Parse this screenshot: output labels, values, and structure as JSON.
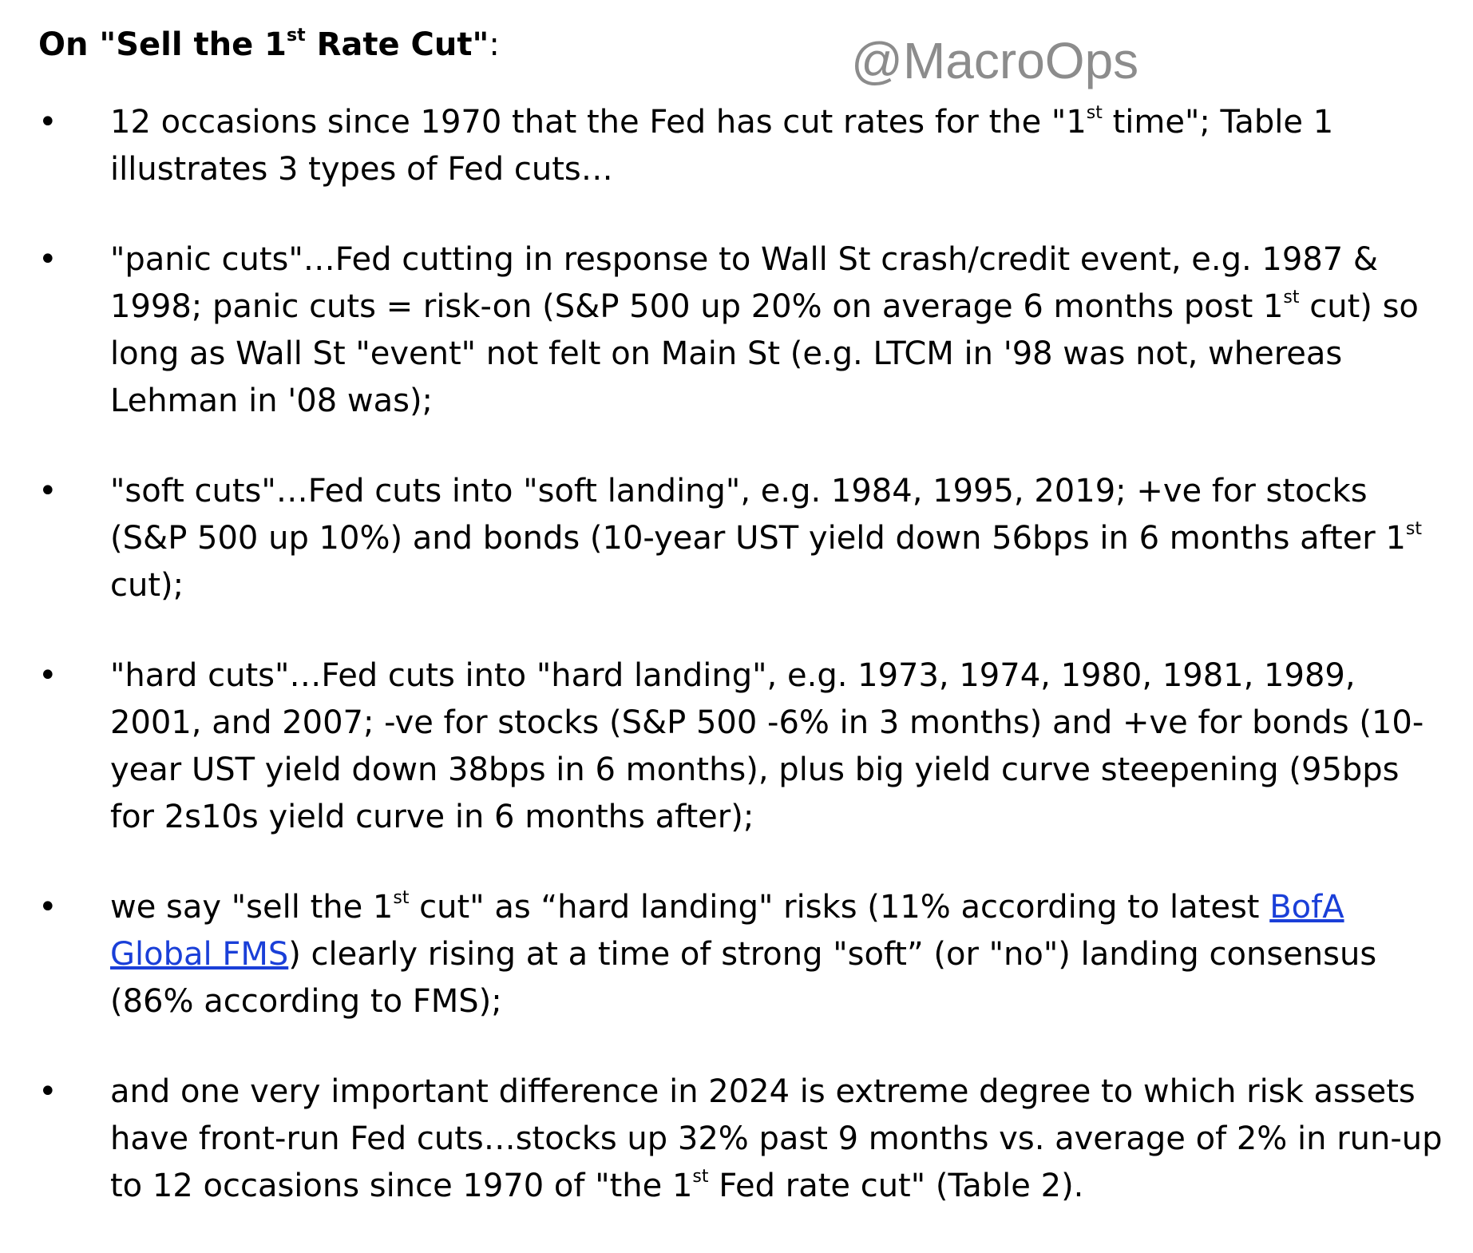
{
  "heading": {
    "prefix": "On \"Sell the 1",
    "sup": "st",
    "suffix": " Rate Cut\"",
    "colon": ":"
  },
  "watermark": "@MacroOps",
  "bullet_char": "•",
  "bullets": [
    {
      "t1": "12 occasions since 1970 that the Fed has cut rates for the \"1",
      "s1": "st",
      "t2": " time\"; Table 1 illustrates 3 types of Fed cuts…"
    },
    {
      "t1": "\"panic cuts\"…Fed cutting in response to Wall St crash/credit event, e.g. 1987 & 1998; panic cuts = risk-on (S&P 500 up 20% on average 6 months post 1",
      "s1": "st",
      "t2": " cut) so long as Wall St \"event\" not felt on Main St (e.g. LTCM in '98 was not, whereas Lehman in '08 was);"
    },
    {
      "t1": "\"soft cuts\"…Fed cuts into \"soft landing\", e.g. 1984, 1995, 2019; +ve for stocks (S&P 500 up 10%) and bonds (10-year UST yield down 56bps in 6 months after 1",
      "s1": "st",
      "t2": " cut);"
    },
    {
      "t1": "\"hard cuts\"…Fed cuts into \"hard landing\", e.g. 1973, 1974, 1980, 1981, 1989, 2001, and 2007; -ve for stocks (S&P 500 -6% in 3 months) and +ve for bonds (10-year UST yield down 38bps in 6 months), plus big yield curve steepening (95bps for 2s10s yield curve in 6 months after);"
    },
    {
      "t1": "we say \"sell the 1",
      "s1": "st",
      "t2": " cut\" as “hard landing\" risks (11% according to latest ",
      "link": "BofA Global FMS",
      "t3": ") clearly rising at a time of strong \"soft” (or \"no\") landing consensus (86% according to FMS);"
    },
    {
      "t1": "and one very important difference in 2024 is extreme degree to which risk assets have front-run Fed cuts…stocks up 32% past 9 months vs. average of 2% in run-up to 12 occasions since 1970 of \"the 1",
      "s1": "st",
      "t2": " Fed rate cut\" (Table 2)."
    }
  ]
}
